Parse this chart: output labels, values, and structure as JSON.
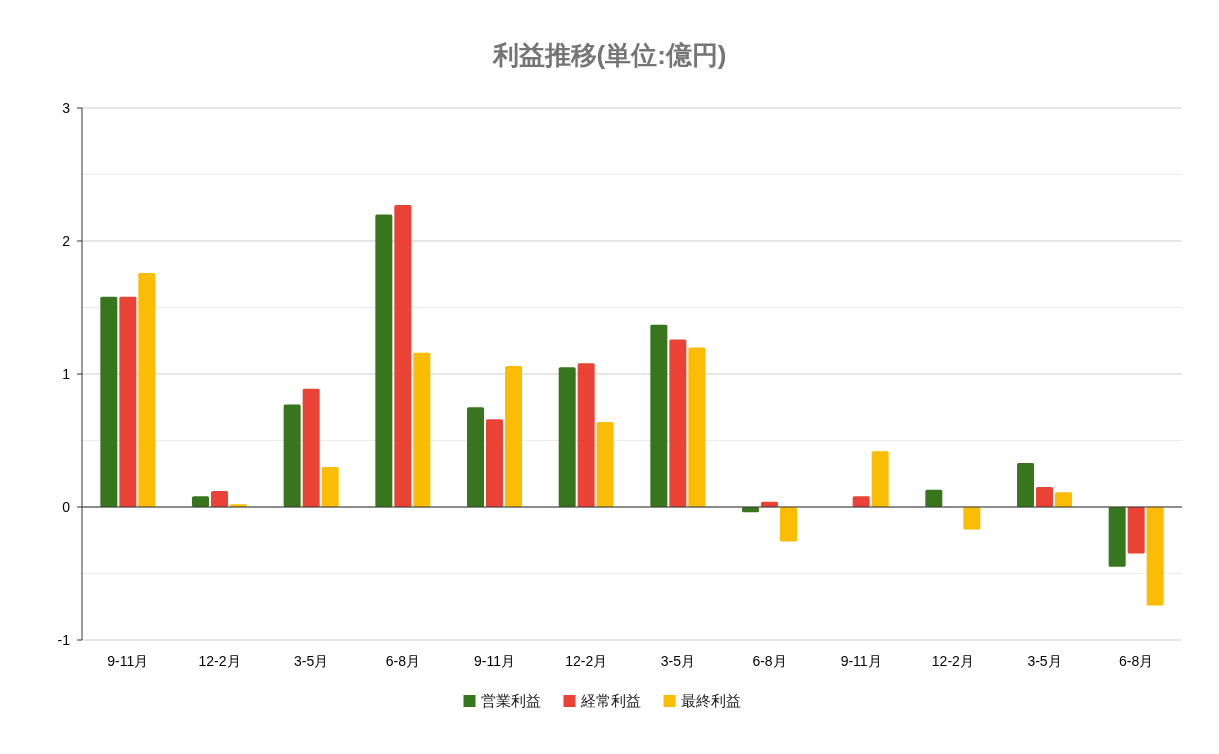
{
  "chart_data": {
    "type": "bar",
    "title": "利益推移(単位:億円)",
    "categories": [
      "9-11月",
      "12-2月",
      "3-5月",
      "6-8月",
      "9-11月",
      "12-2月",
      "3-5月",
      "6-8月",
      "9-11月",
      "12-2月",
      "3-5月",
      "6-8月"
    ],
    "series": [
      {
        "name": "営業利益",
        "color": "#38761d",
        "values": [
          1.58,
          0.08,
          0.77,
          2.2,
          0.75,
          1.05,
          1.37,
          -0.04,
          null,
          0.13,
          0.33,
          -0.45
        ]
      },
      {
        "name": "経常利益",
        "color": "#ea4335",
        "values": [
          1.58,
          0.12,
          0.89,
          2.27,
          0.66,
          1.08,
          1.26,
          0.04,
          0.08,
          null,
          0.15,
          -0.35
        ]
      },
      {
        "name": "最終利益",
        "color": "#fbbc04",
        "values": [
          1.76,
          0.02,
          0.3,
          1.16,
          1.06,
          0.64,
          1.2,
          -0.26,
          0.42,
          -0.17,
          0.11,
          -0.74
        ]
      }
    ],
    "ylim": [
      -1,
      3
    ],
    "yticks": [
      -1,
      {
        "value": -0.5,
        "label": null
      },
      0,
      {
        "value": 0.5,
        "label": null
      },
      1,
      {
        "value": 1.5,
        "label": null
      },
      2,
      {
        "value": 2.5,
        "label": null
      },
      3
    ],
    "grid": "y",
    "legend": "bottom"
  }
}
